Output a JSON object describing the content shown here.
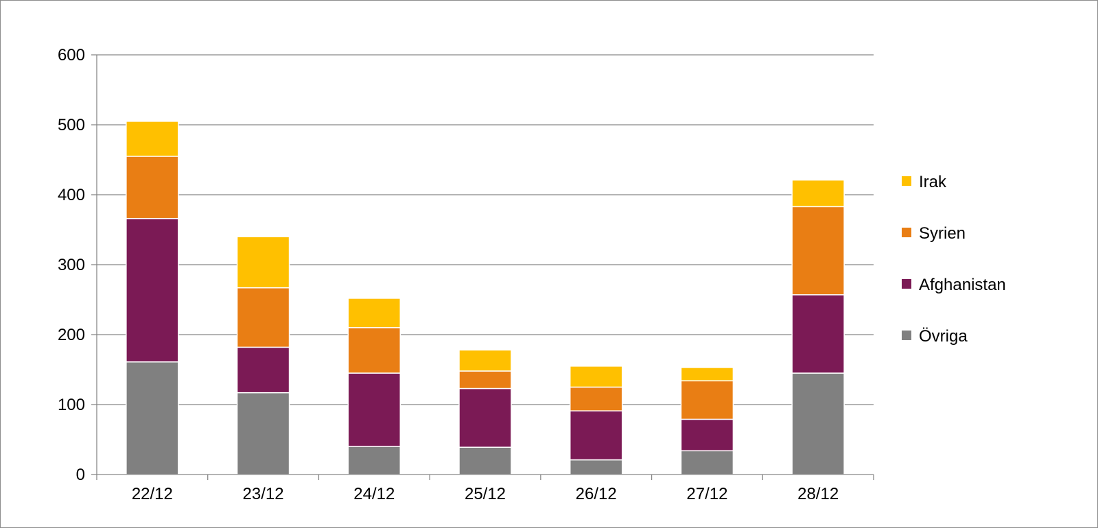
{
  "chart_data": {
    "type": "bar",
    "stacked": true,
    "categories": [
      "22/12",
      "23/12",
      "24/12",
      "25/12",
      "26/12",
      "27/12",
      "28/12"
    ],
    "series": [
      {
        "name": "Övriga",
        "color": "#808080",
        "values": [
          161,
          117,
          40,
          39,
          21,
          34,
          145
        ]
      },
      {
        "name": "Afghanistan",
        "color": "#7b1a55",
        "values": [
          205,
          65,
          105,
          84,
          70,
          45,
          112
        ]
      },
      {
        "name": "Syrien",
        "color": "#e97e14",
        "values": [
          89,
          85,
          65,
          25,
          34,
          55,
          126
        ]
      },
      {
        "name": "Irak",
        "color": "#ffc000",
        "values": [
          50,
          73,
          42,
          30,
          30,
          19,
          38
        ]
      }
    ],
    "legend_order": [
      "Irak",
      "Syrien",
      "Afghanistan",
      "Övriga"
    ],
    "yticks": [
      0,
      100,
      200,
      300,
      400,
      500,
      600
    ],
    "ylim": [
      0,
      600
    ],
    "grid": true,
    "legend_position": "right",
    "title": "",
    "xlabel": "",
    "ylabel": ""
  }
}
